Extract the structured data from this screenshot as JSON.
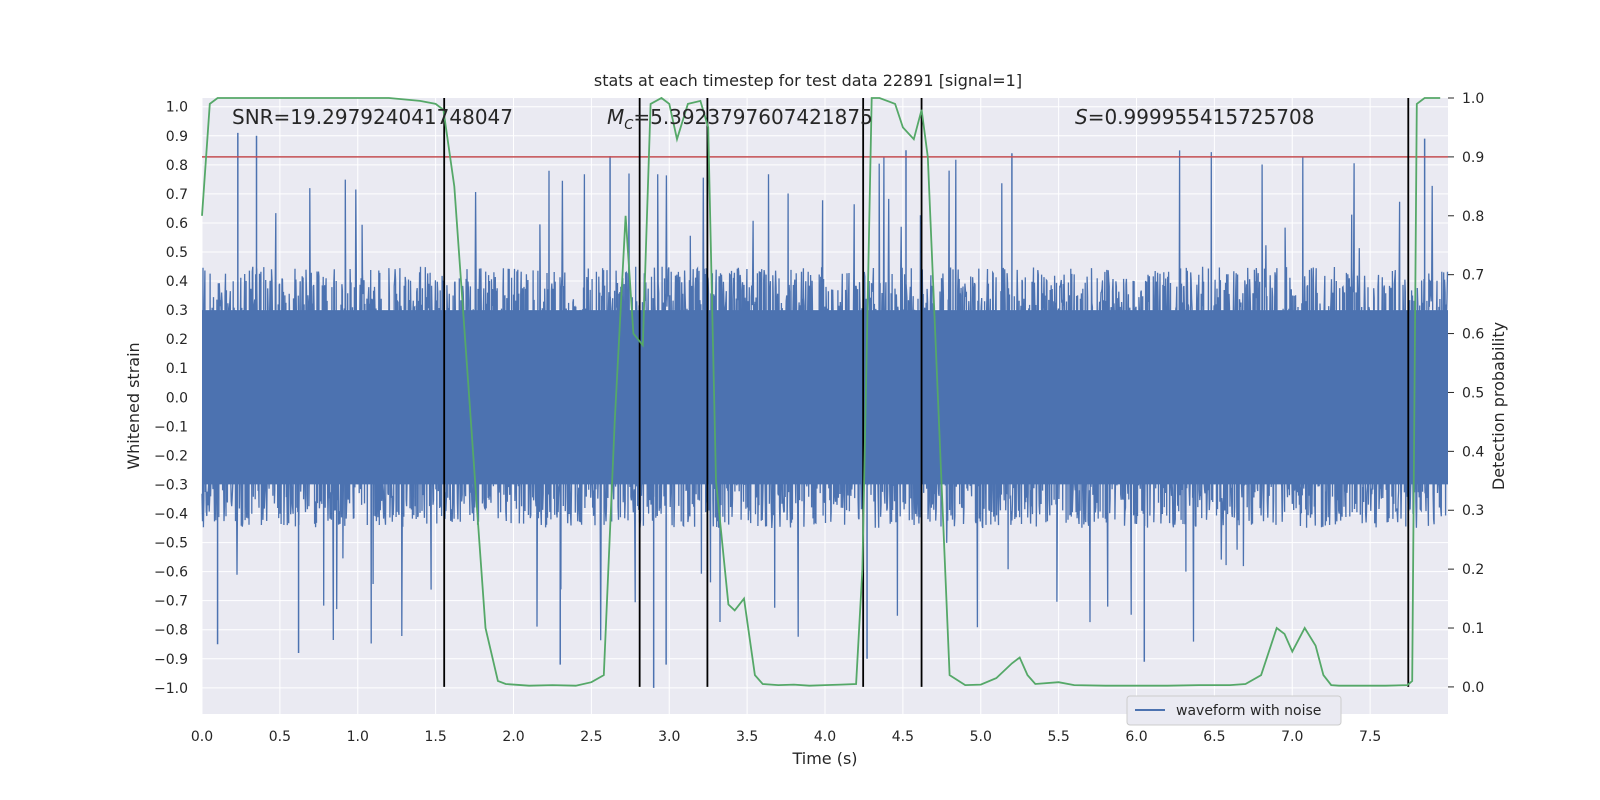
{
  "chart_data": {
    "type": "line",
    "title": "stats at each timestep for test data 22891 [signal=1]",
    "xlabel": "Time (s)",
    "ylabel_left": "Whitened strain",
    "ylabel_right": "Detection probability",
    "xlim": [
      0.0,
      8.0
    ],
    "ylim_left": [
      -1.09,
      1.03
    ],
    "ylim_right": [
      -0.046,
      1.0
    ],
    "x_ticks": [
      0.0,
      0.5,
      1.0,
      1.5,
      2.0,
      2.5,
      3.0,
      3.5,
      4.0,
      4.5,
      5.0,
      5.5,
      6.0,
      6.5,
      7.0,
      7.5
    ],
    "x_tick_labels": [
      "0.0",
      "0.5",
      "1.0",
      "1.5",
      "2.0",
      "2.5",
      "3.0",
      "3.5",
      "4.0",
      "4.5",
      "5.0",
      "5.5",
      "6.0",
      "6.5",
      "7.0",
      "7.5"
    ],
    "y_left_ticks": [
      1.0,
      0.9,
      0.8,
      0.7,
      0.6,
      0.5,
      0.4,
      0.3,
      0.2,
      0.1,
      0.0,
      -0.1,
      -0.2,
      -0.3,
      -0.4,
      -0.5,
      -0.6,
      -0.7,
      -0.8,
      -0.9,
      -1.0
    ],
    "y_left_tick_labels": [
      "1.0",
      "0.9",
      "0.8",
      "0.7",
      "0.6",
      "0.5",
      "0.4",
      "0.3",
      "0.2",
      "0.1",
      "0.0",
      "−0.1",
      "−0.2",
      "−0.3",
      "−0.4",
      "−0.5",
      "−0.6",
      "−0.7",
      "−0.8",
      "−0.9",
      "−1.0"
    ],
    "y_right_ticks": [
      1.0,
      0.9,
      0.8,
      0.7,
      0.6,
      0.5,
      0.4,
      0.3,
      0.2,
      0.1,
      0.0
    ],
    "y_right_tick_labels": [
      "1.0",
      "0.9",
      "0.8",
      "0.7",
      "0.6",
      "0.5",
      "0.4",
      "0.3",
      "0.2",
      "0.1",
      "0.0"
    ],
    "threshold": {
      "axis": "right",
      "value": 0.9,
      "color": "#c44e52"
    },
    "annotations": {
      "snr": "SNR=19.297924041748047",
      "mc_symbol": "M",
      "mc_sub": "C",
      "mc_value": "=5.3923797607421875",
      "s_symbol": "S",
      "s_value": "=0.999955415725708"
    },
    "event_lines": {
      "times": [
        1.555,
        2.81,
        3.245,
        4.245,
        4.62,
        7.745
      ],
      "color": "#000000"
    },
    "series": [
      {
        "name": "waveform with noise",
        "axis": "left",
        "color": "#4c72b0",
        "envelope_typical": [
          -0.45,
          0.45
        ],
        "envelope_extreme": [
          -1.0,
          1.0
        ],
        "spike_peaks": [
          {
            "x": 0.1,
            "y": -0.85
          },
          {
            "x": 0.23,
            "y": 0.91
          },
          {
            "x": 0.35,
            "y": 0.9
          },
          {
            "x": 0.62,
            "y": -0.88
          },
          {
            "x": 2.3,
            "y": -0.92
          },
          {
            "x": 2.62,
            "y": 0.83
          },
          {
            "x": 2.9,
            "y": -1.0
          },
          {
            "x": 2.98,
            "y": -0.92
          },
          {
            "x": 4.27,
            "y": -0.9
          },
          {
            "x": 4.52,
            "y": 0.85
          },
          {
            "x": 5.2,
            "y": 0.84
          },
          {
            "x": 6.05,
            "y": -0.91
          },
          {
            "x": 7.85,
            "y": 0.89
          }
        ]
      },
      {
        "name": "detection probability",
        "axis": "right",
        "color": "#55a868",
        "x": [
          0.0,
          0.05,
          0.1,
          0.2,
          0.4,
          0.6,
          0.8,
          1.0,
          1.2,
          1.4,
          1.5,
          1.55,
          1.62,
          1.7,
          1.78,
          1.82,
          1.9,
          1.95,
          2.1,
          2.25,
          2.4,
          2.5,
          2.58,
          2.65,
          2.72,
          2.77,
          2.83,
          2.88,
          2.95,
          3.0,
          3.05,
          3.12,
          3.2,
          3.25,
          3.3,
          3.38,
          3.42,
          3.48,
          3.55,
          3.6,
          3.7,
          3.8,
          3.9,
          4.0,
          4.1,
          4.2,
          4.24,
          4.3,
          4.35,
          4.45,
          4.5,
          4.57,
          4.62,
          4.66,
          4.7,
          4.8,
          4.9,
          5.0,
          5.1,
          5.2,
          5.25,
          5.3,
          5.35,
          5.5,
          5.6,
          5.8,
          6.0,
          6.2,
          6.4,
          6.6,
          6.7,
          6.8,
          6.9,
          6.95,
          7.0,
          7.08,
          7.15,
          7.2,
          7.25,
          7.3,
          7.4,
          7.5,
          7.6,
          7.74,
          7.77,
          7.8,
          7.85,
          7.9,
          7.95
        ],
        "y": [
          0.8,
          0.99,
          1.0,
          1.0,
          1.0,
          1.0,
          1.0,
          1.0,
          1.0,
          0.995,
          0.99,
          0.98,
          0.85,
          0.55,
          0.25,
          0.1,
          0.01,
          0.005,
          0.002,
          0.003,
          0.002,
          0.008,
          0.02,
          0.45,
          0.8,
          0.6,
          0.58,
          0.99,
          1.0,
          0.99,
          0.93,
          0.99,
          0.995,
          0.95,
          0.35,
          0.14,
          0.13,
          0.15,
          0.02,
          0.005,
          0.003,
          0.004,
          0.002,
          0.003,
          0.004,
          0.005,
          0.2,
          1.0,
          1.0,
          0.99,
          0.95,
          0.93,
          0.98,
          0.9,
          0.65,
          0.02,
          0.003,
          0.004,
          0.015,
          0.04,
          0.05,
          0.02,
          0.005,
          0.008,
          0.003,
          0.002,
          0.002,
          0.002,
          0.003,
          0.003,
          0.005,
          0.02,
          0.1,
          0.09,
          0.06,
          0.1,
          0.07,
          0.02,
          0.003,
          0.002,
          0.002,
          0.002,
          0.002,
          0.003,
          0.01,
          0.99,
          1.0,
          1.0,
          1.0
        ]
      }
    ],
    "legend": {
      "position": "bottom-right",
      "entries": [
        "waveform with noise"
      ]
    }
  }
}
